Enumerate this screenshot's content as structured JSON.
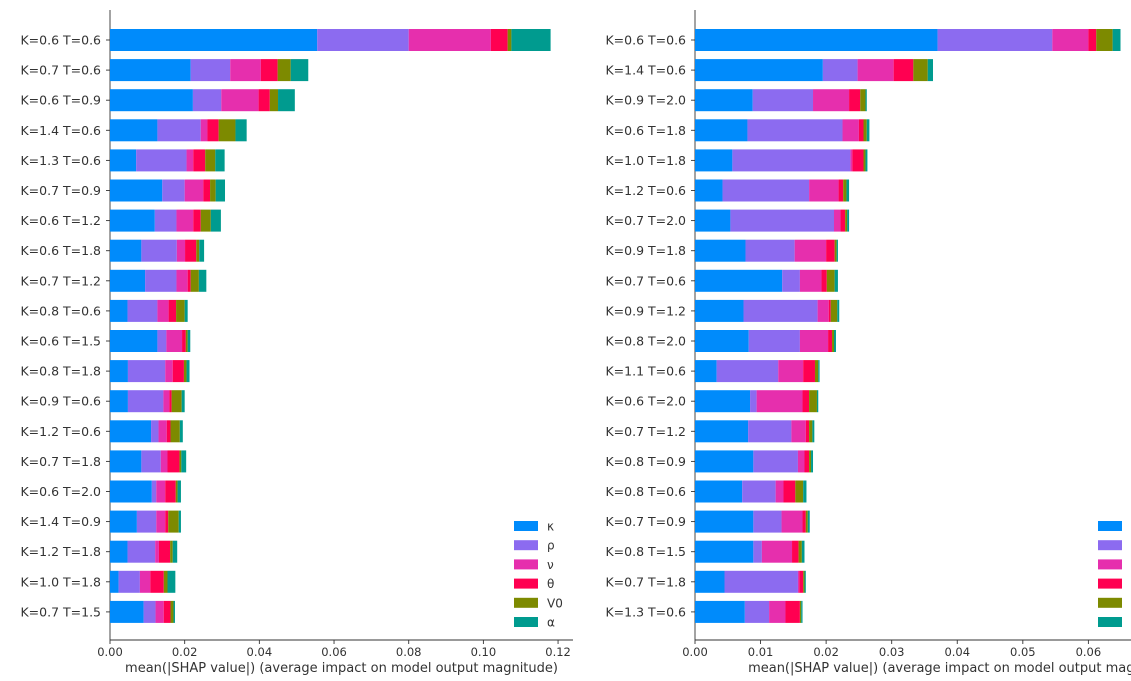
{
  "colors": {
    "κ": "#008bfb",
    "ρ": "#8c6bf0",
    "ν": "#e62fad",
    "θ": "#ff0051",
    "V0": "#7d8a00",
    "α": "#009b8f"
  },
  "chart_data": [
    {
      "type": "bar",
      "orientation": "horizontal",
      "stacked": true,
      "xlabel": "mean(|SHAP value|) (average impact on model output magnitude)",
      "xlim": [
        0,
        0.124
      ],
      "xticks": [
        0.0,
        0.02,
        0.04,
        0.06,
        0.08,
        0.1,
        0.12
      ],
      "xtick_labels": [
        "0.00",
        "0.02",
        "0.04",
        "0.06",
        "0.08",
        "0.10",
        "0.12"
      ],
      "legend_position": "lower-right",
      "legend_labels": [
        "κ",
        "ρ",
        "ν",
        "θ",
        "V0",
        "α"
      ],
      "categories": [
        "K=0.6 T=0.6",
        "K=0.7 T=0.6",
        "K=0.6 T=0.9",
        "K=1.4 T=0.6",
        "K=1.3 T=0.6",
        "K=0.7 T=0.9",
        "K=0.6 T=1.2",
        "K=0.6 T=1.8",
        "K=0.7 T=1.2",
        "K=0.8 T=0.6",
        "K=0.6 T=1.5",
        "K=0.8 T=1.8",
        "K=0.9 T=0.6",
        "K=1.2 T=0.6",
        "K=0.7 T=1.8",
        "K=0.6 T=2.0",
        "K=1.4 T=0.9",
        "K=1.2 T=1.8",
        "K=1.0 T=1.8",
        "K=0.7 T=1.5"
      ],
      "series": [
        {
          "name": "κ",
          "values": [
            0.0555,
            0.0216,
            0.0222,
            0.0127,
            0.007,
            0.014,
            0.012,
            0.0084,
            0.0094,
            0.0047,
            0.0127,
            0.0048,
            0.0048,
            0.011,
            0.0084,
            0.0112,
            0.0072,
            0.0047,
            0.0023,
            0.009
          ]
        },
        {
          "name": "ρ",
          "values": [
            0.0245,
            0.0106,
            0.0076,
            0.0116,
            0.0135,
            0.006,
            0.0058,
            0.0095,
            0.0084,
            0.008,
            0.0024,
            0.01,
            0.0095,
            0.002,
            0.0052,
            0.0012,
            0.0052,
            0.0074,
            0.0057,
            0.0032
          ]
        },
        {
          "name": "ν",
          "values": [
            0.022,
            0.0082,
            0.01,
            0.0018,
            0.0018,
            0.005,
            0.0045,
            0.0022,
            0.003,
            0.003,
            0.0042,
            0.002,
            0.0016,
            0.0022,
            0.0018,
            0.0024,
            0.0024,
            0.001,
            0.0028,
            0.0022
          ]
        },
        {
          "name": "θ",
          "values": [
            0.0045,
            0.0045,
            0.003,
            0.003,
            0.0032,
            0.0018,
            0.002,
            0.003,
            0.0008,
            0.002,
            0.001,
            0.003,
            0.0006,
            0.001,
            0.0032,
            0.0028,
            0.0008,
            0.003,
            0.0036,
            0.0018
          ]
        },
        {
          "name": "V0",
          "values": [
            0.001,
            0.0035,
            0.0022,
            0.0045,
            0.0027,
            0.0015,
            0.0027,
            0.0008,
            0.0022,
            0.0023,
            0.0005,
            0.0007,
            0.0027,
            0.0025,
            0.0005,
            0.0005,
            0.0028,
            0.0007,
            0.001,
            0.0008
          ]
        },
        {
          "name": "α",
          "values": [
            0.0105,
            0.0047,
            0.0045,
            0.003,
            0.0025,
            0.0025,
            0.0027,
            0.0013,
            0.002,
            0.0008,
            0.0007,
            0.0008,
            0.0008,
            0.0008,
            0.0013,
            0.0009,
            0.0006,
            0.0012,
            0.0021,
            0.0004
          ]
        }
      ]
    },
    {
      "type": "bar",
      "orientation": "horizontal",
      "stacked": true,
      "xlabel": "mean(|SHAP value|) (average impact on model output magnitud",
      "xlim": [
        0,
        0.0665
      ],
      "xticks": [
        0.0,
        0.01,
        0.02,
        0.03,
        0.04,
        0.05,
        0.06
      ],
      "xtick_labels": [
        "0.00",
        "0.01",
        "0.02",
        "0.03",
        "0.04",
        "0.05",
        "0.06"
      ],
      "legend_position": "lower-right",
      "categories": [
        "K=0.6 T=0.6",
        "K=1.4 T=0.6",
        "K=0.9 T=2.0",
        "K=0.6 T=1.8",
        "K=1.0 T=1.8",
        "K=1.2 T=0.6",
        "K=0.7 T=2.0",
        "K=0.9 T=1.8",
        "K=0.7 T=0.6",
        "K=0.9 T=1.2",
        "K=0.8 T=2.0",
        "K=1.1 T=0.6",
        "K=0.6 T=2.0",
        "K=0.7 T=1.2",
        "K=0.8 T=0.9",
        "K=0.8 T=0.6",
        "K=0.7 T=0.9",
        "K=0.8 T=1.5",
        "K=0.7 T=1.8",
        "K=1.3 T=0.6"
      ],
      "series": [
        {
          "name": "κ",
          "values": [
            0.037,
            0.0195,
            0.0088,
            0.008,
            0.0057,
            0.0042,
            0.0054,
            0.0077,
            0.0133,
            0.0074,
            0.0082,
            0.0033,
            0.0084,
            0.0081,
            0.0089,
            0.0072,
            0.0089,
            0.0089,
            0.0045,
            0.0076
          ]
        },
        {
          "name": "ρ",
          "values": [
            0.0175,
            0.0053,
            0.0092,
            0.0145,
            0.018,
            0.0132,
            0.0158,
            0.0075,
            0.0027,
            0.0113,
            0.0078,
            0.0094,
            0.001,
            0.0066,
            0.0068,
            0.0051,
            0.0043,
            0.0013,
            0.0112,
            0.0037
          ]
        },
        {
          "name": "ν",
          "values": [
            0.0055,
            0.0055,
            0.0055,
            0.0025,
            0.0003,
            0.0045,
            0.001,
            0.0048,
            0.0033,
            0.0017,
            0.0043,
            0.0038,
            0.007,
            0.0022,
            0.001,
            0.0012,
            0.0032,
            0.0046,
            0.0002,
            0.0025
          ]
        },
        {
          "name": "θ",
          "values": [
            0.0012,
            0.003,
            0.0017,
            0.0007,
            0.0017,
            0.0007,
            0.0007,
            0.0013,
            0.0008,
            0.0003,
            0.0006,
            0.0018,
            0.001,
            0.0005,
            0.0007,
            0.0018,
            0.0005,
            0.001,
            0.0006,
            0.0022
          ]
        },
        {
          "name": "V0",
          "values": [
            0.0025,
            0.0022,
            0.0008,
            0.0005,
            0.0003,
            0.0005,
            0.0003,
            0.0003,
            0.0012,
            0.001,
            0.0003,
            0.0005,
            0.0012,
            0.0005,
            0.0003,
            0.0012,
            0.0003,
            0.0005,
            0.0002,
            0.0002
          ]
        },
        {
          "name": "α",
          "values": [
            0.0012,
            0.0008,
            0.0002,
            0.0004,
            0.0003,
            0.0004,
            0.0003,
            0.0002,
            0.0005,
            0.0003,
            0.0003,
            0.0002,
            0.0002,
            0.0003,
            0.0003,
            0.0005,
            0.0003,
            0.0004,
            0.0002,
            0.0002
          ]
        }
      ]
    }
  ]
}
